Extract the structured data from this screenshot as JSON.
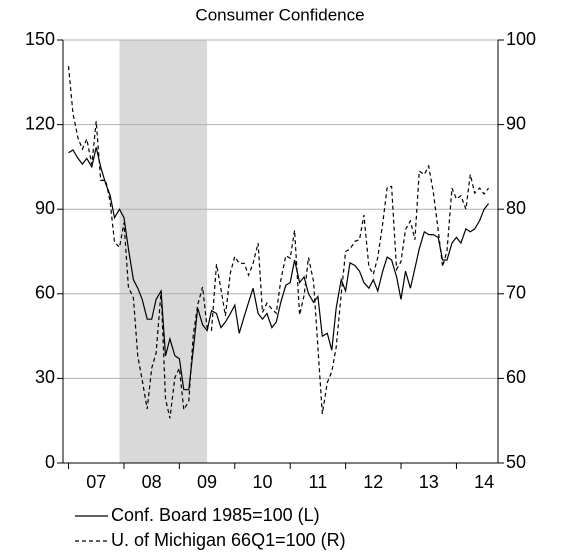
{
  "chart_data": {
    "type": "line",
    "title": "Consumer Confidence",
    "x": [
      2007.0,
      2007.08,
      2007.17,
      2007.25,
      2007.33,
      2007.42,
      2007.5,
      2007.58,
      2007.67,
      2007.75,
      2007.83,
      2007.92,
      2008.0,
      2008.08,
      2008.17,
      2008.25,
      2008.33,
      2008.42,
      2008.5,
      2008.58,
      2008.67,
      2008.75,
      2008.83,
      2008.92,
      2009.0,
      2009.08,
      2009.17,
      2009.25,
      2009.33,
      2009.42,
      2009.5,
      2009.58,
      2009.67,
      2009.75,
      2009.83,
      2009.92,
      2010.0,
      2010.08,
      2010.17,
      2010.25,
      2010.33,
      2010.42,
      2010.5,
      2010.58,
      2010.67,
      2010.75,
      2010.83,
      2010.92,
      2011.0,
      2011.08,
      2011.17,
      2011.25,
      2011.33,
      2011.42,
      2011.5,
      2011.58,
      2011.67,
      2011.75,
      2011.83,
      2011.92,
      2012.0,
      2012.08,
      2012.17,
      2012.25,
      2012.33,
      2012.42,
      2012.5,
      2012.58,
      2012.67,
      2012.75,
      2012.83,
      2012.92,
      2013.0,
      2013.08,
      2013.17,
      2013.25,
      2013.33,
      2013.42,
      2013.5,
      2013.58,
      2013.67,
      2013.75,
      2013.83,
      2013.92,
      2014.0,
      2014.08,
      2014.17,
      2014.25,
      2014.33,
      2014.42,
      2014.5,
      2014.58
    ],
    "series": [
      {
        "name": "Conf. Board 1985=100 (L)",
        "color": "#000000",
        "dash": "solid",
        "axis": "y",
        "values": [
          110,
          111,
          108,
          106,
          108,
          105,
          112,
          105,
          99,
          95,
          87,
          90,
          87,
          76,
          65,
          62,
          58,
          51,
          51,
          58,
          61,
          38,
          44,
          38,
          37,
          26,
          26,
          40,
          55,
          49,
          47,
          54,
          53,
          48,
          50,
          53,
          56,
          46,
          52,
          57,
          62,
          53,
          51,
          53,
          48,
          50,
          57,
          63,
          64,
          72,
          64,
          66,
          60,
          57,
          59,
          45,
          46,
          40,
          55,
          65,
          61,
          71,
          70,
          68,
          64,
          62,
          65,
          61,
          68,
          73,
          72,
          66,
          58,
          68,
          62,
          69,
          76,
          82,
          81,
          81,
          80,
          72,
          72,
          78,
          80,
          78,
          83,
          82,
          83,
          86,
          90,
          92
        ]
      },
      {
        "name": "U. of Michigan 66Q1=100 (R)",
        "color": "#000000",
        "dash": "dashed",
        "axis": "y2",
        "values": [
          96.9,
          91.3,
          88.4,
          87.1,
          88.3,
          85.3,
          90.4,
          83.4,
          83.4,
          80.9,
          76.1,
          75.5,
          78.4,
          70.8,
          69.5,
          62.6,
          59.8,
          56.4,
          61.2,
          63.0,
          70.3,
          57.6,
          55.3,
          60.1,
          61.2,
          56.3,
          57.3,
          65.1,
          68.7,
          70.8,
          66.0,
          65.7,
          73.5,
          70.6,
          67.4,
          72.5,
          74.4,
          73.6,
          73.6,
          72.2,
          73.6,
          76.0,
          67.8,
          68.9,
          68.2,
          67.7,
          71.6,
          74.5,
          74.2,
          77.5,
          67.5,
          69.8,
          74.3,
          71.5,
          63.7,
          55.8,
          59.5,
          60.8,
          63.7,
          69.9,
          75.0,
          75.3,
          76.2,
          76.4,
          79.3,
          73.2,
          72.3,
          74.3,
          78.3,
          82.6,
          82.7,
          72.9,
          73.8,
          77.6,
          78.6,
          76.4,
          84.5,
          84.1,
          85.1,
          82.1,
          77.5,
          73.2,
          75.1,
          82.5,
          81.2,
          81.6,
          80.0,
          84.1,
          81.9,
          82.5,
          81.8,
          82.5
        ]
      }
    ],
    "xlim": [
      2006.9,
      2014.75
    ],
    "xticks": [
      {
        "value": 2007,
        "label": "07"
      },
      {
        "value": 2008,
        "label": "08"
      },
      {
        "value": 2009,
        "label": "09"
      },
      {
        "value": 2010,
        "label": "10"
      },
      {
        "value": 2011,
        "label": "11"
      },
      {
        "value": 2012,
        "label": "12"
      },
      {
        "value": 2013,
        "label": "13"
      },
      {
        "value": 2014,
        "label": "14"
      }
    ],
    "ylim": [
      0,
      150
    ],
    "yticks": [
      0,
      30,
      60,
      90,
      120,
      150
    ],
    "y2lim": [
      50,
      100
    ],
    "y2ticks": [
      50,
      60,
      70,
      80,
      90,
      100
    ],
    "shade": [
      2007.92,
      2009.5
    ],
    "shade_color": "#d9d9d9",
    "grid": true
  }
}
